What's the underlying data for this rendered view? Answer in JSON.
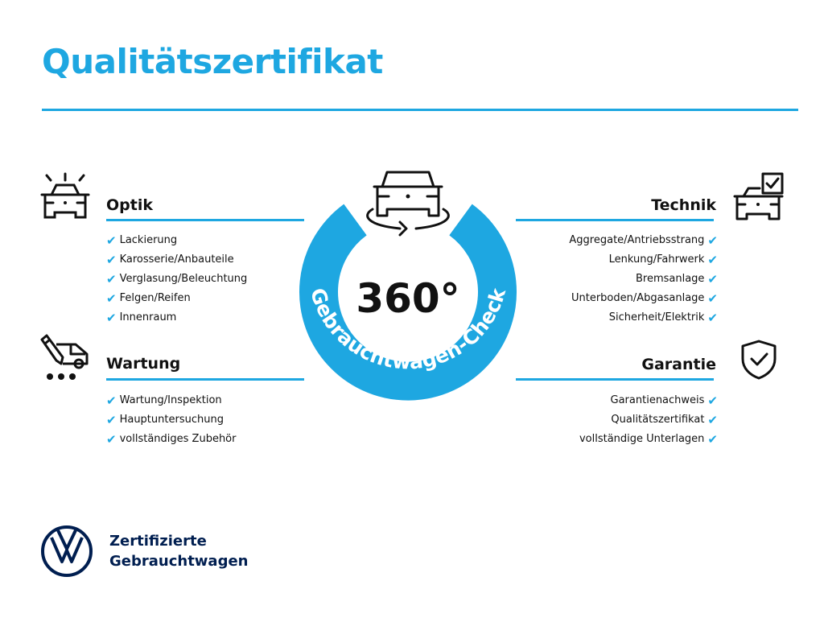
{
  "title": "Qualitätszertifikat",
  "colors": {
    "accent": "#1ea7e1",
    "brand": "#001e50"
  },
  "center": {
    "value": "360°",
    "ring_text": "Gebrauchtwagen-Check",
    "icon": "car-rotate-icon"
  },
  "sections": {
    "optik": {
      "title": "Optik",
      "icon": "car-lights-icon",
      "items": [
        "Lackierung",
        "Karosserie/Anbauteile",
        "Verglasung/Beleuchtung",
        "Felgen/Reifen",
        "Innenraum"
      ]
    },
    "wartung": {
      "title": "Wartung",
      "icon": "service-van-icon",
      "items": [
        "Wartung/Inspektion",
        "Hauptuntersuchung",
        "vollständiges Zubehör"
      ]
    },
    "technik": {
      "title": "Technik",
      "icon": "car-checklist-icon",
      "items": [
        "Aggregate/Antriebsstrang",
        "Lenkung/Fahrwerk",
        "Bremsanlage",
        "Unterboden/Abgasanlage",
        "Sicherheit/Elektrik"
      ]
    },
    "garantie": {
      "title": "Garantie",
      "icon": "shield-check-icon",
      "items": [
        "Garantienachweis",
        "Qualitätszertifikat",
        "vollständige Unterlagen"
      ]
    }
  },
  "check_mark": "✔",
  "footer": {
    "line1": "Zertifizierte",
    "line2": "Gebrauchtwagen",
    "logo": "vw-logo"
  }
}
